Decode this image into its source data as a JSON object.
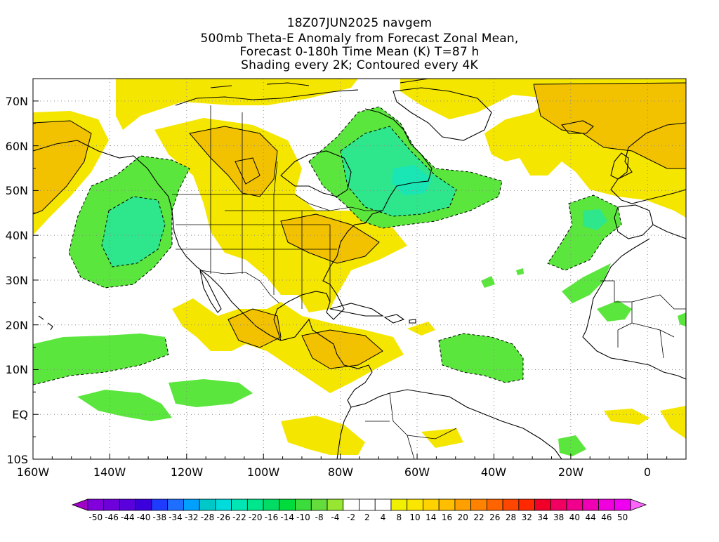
{
  "title": {
    "line1": "18Z07JUN2025 navgem",
    "line2": "500mb Theta-E Anomaly from Forecast Zonal Mean,",
    "line3": "Forecast 0-180h Time Mean (K) T=87 h",
    "line4": "Shading every 2K; Contoured every 4K"
  },
  "map": {
    "projection": "latitude-longitude",
    "lon_range": [
      -160,
      10
    ],
    "lat_range": [
      -10,
      75
    ],
    "grid_lines": "dotted",
    "lat_labels": [
      "70N",
      "60N",
      "50N",
      "40N",
      "30N",
      "20N",
      "10N",
      "EQ",
      "10S"
    ],
    "lon_labels": [
      "160W",
      "140W",
      "120W",
      "100W",
      "80W",
      "60W",
      "40W",
      "20W",
      "0"
    ],
    "background_color": "#ffffff",
    "coastline_color": "#000000"
  },
  "colorbar": {
    "labels": [
      "-50",
      "-46",
      "-44",
      "-40",
      "-38",
      "-34",
      "-32",
      "-28",
      "-26",
      "-22",
      "-20",
      "-16",
      "-14",
      "-10",
      "-8",
      "-4",
      "-2",
      "2",
      "4",
      "8",
      "10",
      "14",
      "16",
      "20",
      "22",
      "26",
      "28",
      "32",
      "34",
      "38",
      "40",
      "44",
      "46",
      "50"
    ],
    "colors": [
      "#a000c8",
      "#8200dc",
      "#6e00dc",
      "#5a00dc",
      "#3c00dc",
      "#1e3cff",
      "#1e6eff",
      "#00a0ff",
      "#00c8c8",
      "#00dcdc",
      "#00e6b4",
      "#00e68c",
      "#00dc64",
      "#00dc3c",
      "#3cdc3c",
      "#64dc3c",
      "#96e632",
      "#ffffff",
      "#ffffff",
      "#ffffff",
      "#f0f000",
      "#fae600",
      "#ffd200",
      "#ffbe00",
      "#ffa000",
      "#ff8200",
      "#ff6400",
      "#ff4600",
      "#ff2800",
      "#f00028",
      "#f00060",
      "#f0008c",
      "#f000b4",
      "#f000dc",
      "#f000f0",
      "#ff64ff"
    ]
  },
  "fields": {
    "positive_fill": "#f5e600",
    "positive_strong_fill": "#f2c200",
    "positive_stronger_fill": "#f0a800",
    "negative_fill": "#5ae63c",
    "negative_strong_fill": "#2ee68c",
    "negative_stronger_fill": "#19e6b4"
  }
}
